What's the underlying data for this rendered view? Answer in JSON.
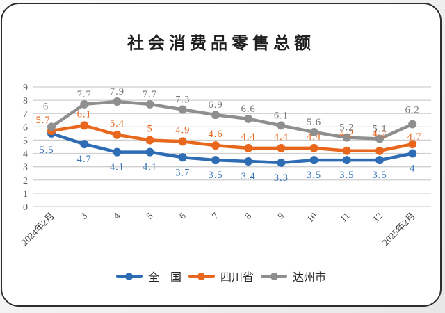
{
  "chart_data": {
    "type": "line",
    "title": "社会消费品零售总额",
    "categories": [
      "2024年2月",
      "3",
      "4",
      "5",
      "6",
      "7",
      "8",
      "9",
      "10",
      "11",
      "12",
      "2025年2月"
    ],
    "series": [
      {
        "name": "全　国",
        "color": "#2E6DB4",
        "label_color": "#3674BC",
        "values": [
          5.5,
          4.7,
          4.1,
          4.1,
          3.7,
          3.5,
          3.4,
          3.3,
          3.5,
          3.5,
          3.5,
          4
        ]
      },
      {
        "name": "四川省",
        "color": "#E8671D",
        "label_color": "#E8671D",
        "values": [
          5.7,
          6.1,
          5.4,
          5,
          4.9,
          4.6,
          4.4,
          4.4,
          4.4,
          4.2,
          4.2,
          4.7
        ]
      },
      {
        "name": "达州市",
        "color": "#8F8F8F",
        "label_color": "#767676",
        "values": [
          6,
          7.7,
          7.9,
          7.7,
          7.3,
          6.9,
          6.6,
          6.1,
          5.6,
          5.2,
          5.1,
          6.2
        ]
      }
    ],
    "ylim": [
      0,
      9
    ],
    "ytick_step": 1,
    "grid": true,
    "legend_position": "bottom",
    "data_labels": true,
    "colors": {
      "gridline": "#CFCFCF",
      "y_tick_label": "#595959",
      "x_tick_label": "#3f3f3f",
      "title": "#1f1f1f",
      "card_border": "#2e2e2e",
      "card_background": "#ffffff"
    }
  }
}
